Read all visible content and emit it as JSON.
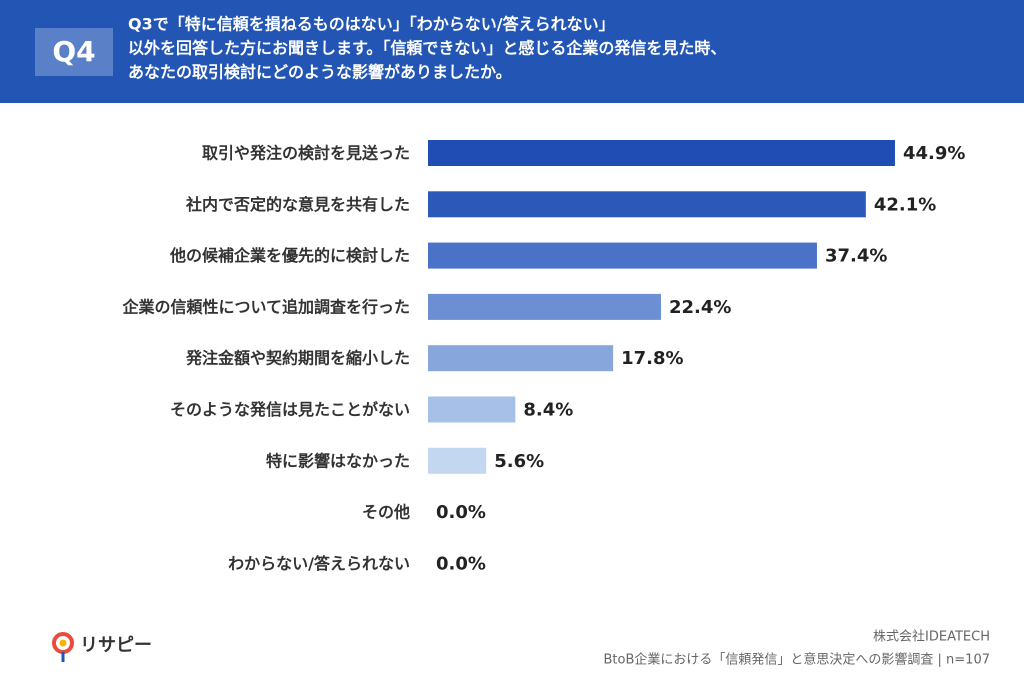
{
  "chart_data": {
    "type": "bar",
    "orientation": "horizontal",
    "badge": "Q4",
    "title_lines": [
      "Q3で「特に信頼を損ねるものはない」「わからない/答えられない」",
      "以外を回答した方にお聞きします。「信頼できない」と感じる企業の発信を見た時、",
      "あなたの取引検討にどのような影響がありましたか。"
    ],
    "categories": [
      "取引や発注の検討を見送った",
      "社内で否定的な意見を共有した",
      "他の候補企業を優先的に検討した",
      "企業の信頼性について追加調査を行った",
      "発注金額や契約期間を縮小した",
      "そのような発信は見たことがない",
      "特に影響はなかった",
      "その他",
      "わからない/答えられない"
    ],
    "values": [
      44.9,
      42.1,
      37.4,
      22.4,
      17.8,
      8.4,
      5.6,
      0.0,
      0.0
    ],
    "value_labels": [
      "44.9%",
      "42.1%",
      "37.4%",
      "22.4%",
      "17.8%",
      "8.4%",
      "5.6%",
      "0.0%",
      "0.0%"
    ],
    "colors": [
      "#1f4db3",
      "#2c58ba",
      "#4a72c6",
      "#6b8fd2",
      "#86a6dc",
      "#a6c0e7",
      "#c3d7f1",
      "#d8e5f6",
      "#d8e5f6"
    ],
    "logo": "リサピー",
    "source_lines": [
      "株式会社IDEATECH",
      "BtoB企業における「信頼発信」と意思決定への影響調査 | n=107"
    ]
  }
}
